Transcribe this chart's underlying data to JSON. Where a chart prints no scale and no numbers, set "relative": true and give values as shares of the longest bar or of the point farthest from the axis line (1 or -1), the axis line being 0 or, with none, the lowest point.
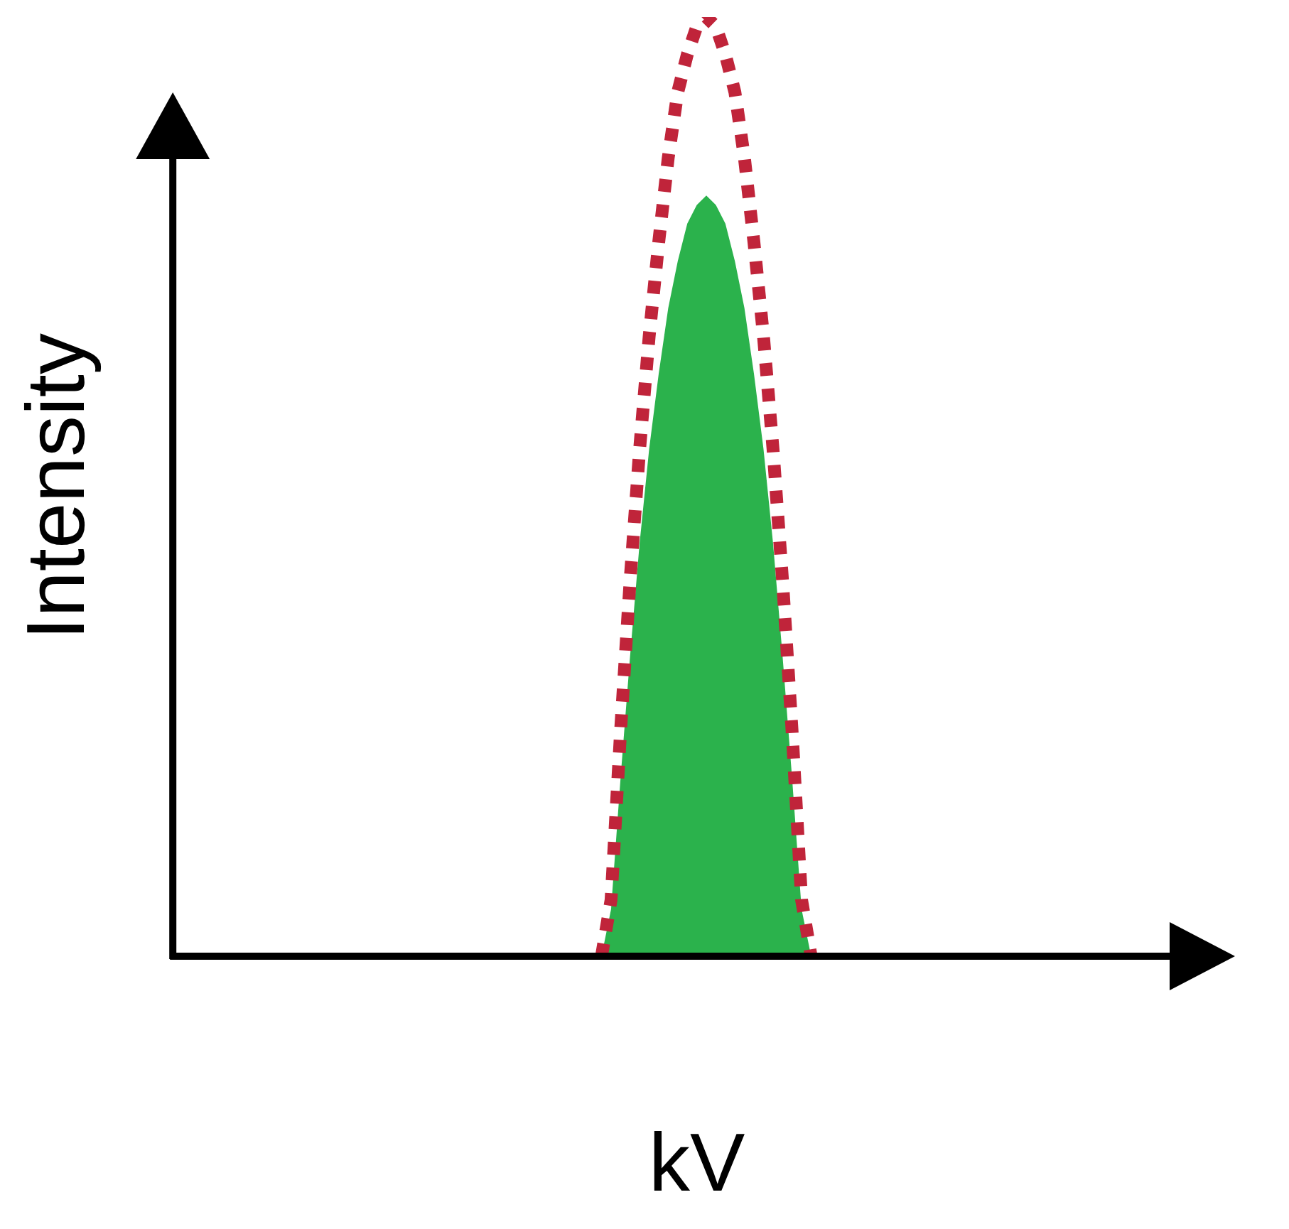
{
  "chart_data": {
    "type": "area",
    "relative": true,
    "xlabel": "kV",
    "ylabel": "Intensity",
    "legend": false,
    "grid": false,
    "categories": [
      null,
      null,
      null,
      null,
      null,
      null,
      null,
      null,
      null,
      null,
      null,
      null,
      null,
      null,
      null,
      null,
      null,
      null,
      null,
      null,
      null,
      null,
      null,
      null,
      null,
      null,
      null,
      null,
      null,
      null,
      null,
      null,
      null,
      null,
      null,
      null,
      null,
      null,
      null,
      null,
      null,
      null,
      null,
      null,
      null,
      null,
      null,
      null,
      null,
      null,
      null,
      null,
      null,
      null,
      null,
      null,
      null,
      null,
      null,
      null,
      null,
      null,
      null,
      null,
      null,
      null,
      null,
      null,
      null,
      null,
      null,
      null,
      null,
      null,
      null,
      null,
      null,
      null,
      null,
      null,
      null,
      null,
      null,
      null,
      null,
      null,
      null,
      null,
      null,
      null,
      null,
      null,
      null,
      null,
      null,
      null,
      null,
      null,
      null,
      null,
      null,
      null,
      null,
      null,
      null,
      null,
      null,
      null,
      null,
      null,
      null
    ],
    "series": [
      {
        "type": "area",
        "color": "#2bb24c",
        "values": [
          null,
          null,
          null,
          null,
          null,
          null,
          null,
          null,
          null,
          null,
          null,
          null,
          null,
          null,
          null,
          null,
          null,
          null,
          null,
          null,
          null,
          null,
          null,
          null,
          null,
          null,
          null,
          null,
          null,
          null,
          null,
          null,
          null,
          null,
          null,
          null,
          null,
          null,
          null,
          null,
          null,
          null,
          null,
          null,
          null,
          0,
          0.05,
          0.19,
          0.32,
          0.44,
          0.54,
          0.62,
          0.69,
          0.74,
          0.78,
          0.8,
          0.81,
          0.8,
          0.78,
          0.74,
          0.69,
          0.62,
          0.54,
          0.44,
          0.32,
          0.19,
          0.05,
          0,
          null,
          null,
          null,
          null,
          null,
          null,
          null,
          null,
          null,
          null,
          null,
          null,
          null,
          null,
          null,
          null,
          null,
          null,
          null,
          null,
          null,
          null,
          null,
          null,
          null,
          null,
          null,
          null,
          null,
          null,
          null,
          null,
          null,
          null,
          null,
          null,
          null,
          null,
          null,
          null,
          null,
          null,
          null
        ]
      },
      {
        "type": "line",
        "line_style": "dotted",
        "color": "#c0243a",
        "values": [
          null,
          null,
          null,
          null,
          null,
          null,
          null,
          null,
          null,
          null,
          null,
          null,
          null,
          null,
          null,
          null,
          null,
          null,
          null,
          null,
          null,
          null,
          null,
          null,
          null,
          null,
          null,
          null,
          null,
          null,
          null,
          null,
          null,
          null,
          null,
          null,
          null,
          null,
          null,
          null,
          null,
          null,
          null,
          null,
          null,
          0,
          0.06,
          0.24,
          0.4,
          0.54,
          0.66,
          0.76,
          0.85,
          0.92,
          0.96,
          0.99,
          1,
          0.99,
          0.96,
          0.92,
          0.85,
          0.76,
          0.66,
          0.54,
          0.4,
          0.24,
          0.06,
          0,
          null,
          null,
          null,
          null,
          null,
          null,
          null,
          null,
          null,
          null,
          null,
          null,
          null,
          null,
          null,
          null,
          null,
          null,
          null,
          null,
          null,
          null,
          null,
          null,
          null,
          null,
          null,
          null,
          null,
          null,
          null,
          null,
          null,
          null,
          null,
          null,
          null,
          null,
          null,
          null,
          null,
          null,
          null
        ]
      }
    ]
  }
}
